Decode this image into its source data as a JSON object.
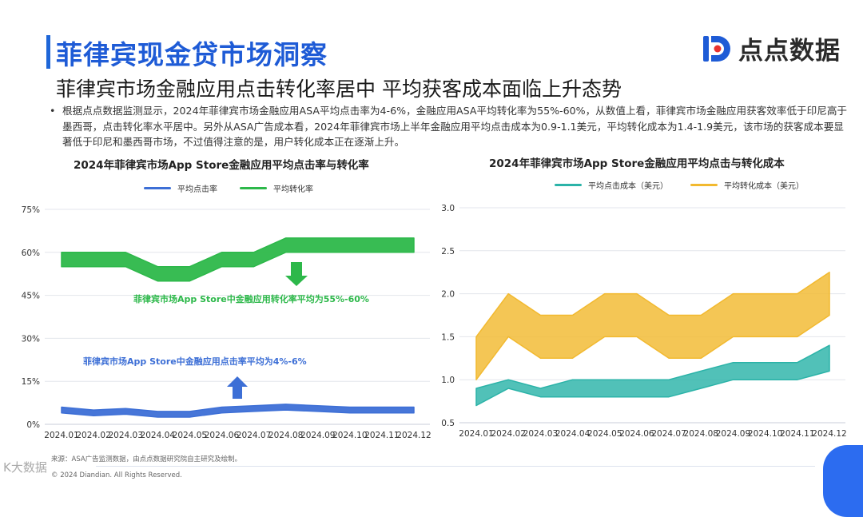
{
  "header": {
    "title": "菲律宾现金贷市场洞察",
    "subtitle": "菲律宾市场金融应用点击转化率居中 平均获客成本面临上升态势",
    "logo_text": "点点数据"
  },
  "summary": {
    "bullet": "•",
    "text": "根据点点数据监测显示，2024年菲律宾市场金融应用ASA平均点击率为4-6%，金融应用ASA平均转化率为55%-60%，从数值上看，菲律宾市场金融应用获客效率低于印尼高于墨西哥，点击转化率水平居中。另外从ASA广告成本看，2024年菲律宾市场上半年金融应用平均点击成本为0.9-1.1美元，平均转化成本为1.4-1.9美元，该市场的获客成本要显著低于印尼和墨西哥市场，不过值得注意的是，用户转化成本正在逐渐上升。"
  },
  "colors": {
    "blue": "#3d6fd6",
    "green": "#2db84a",
    "teal": "#2bb3a8",
    "yellow": "#f2b92f"
  },
  "footer": {
    "source": "来源：ASA广告监测数据，由点点数据研究院自主研究及绘制。",
    "copyright": "© 2024 Diandian. All Rights Reserved.",
    "watermark": "K大数据"
  },
  "chart_data": [
    {
      "type": "area",
      "title": "2024年菲律宾市场App Store金融应用平均点击率与转化率",
      "categories": [
        "2024.01",
        "2024.02",
        "2024.03",
        "2024.04",
        "2024.05",
        "2024.06",
        "2024.07",
        "2024.08",
        "2024.09",
        "2024.10",
        "2024.11",
        "2024.12"
      ],
      "ylim": [
        0,
        75
      ],
      "yticks": [
        "0%",
        "15%",
        "30%",
        "45%",
        "60%",
        "75%"
      ],
      "ytick_values": [
        0,
        15,
        30,
        45,
        60,
        75
      ],
      "series": [
        {
          "name": "平均点击率",
          "color": "#3d6fd6",
          "low": [
            4.0,
            3.0,
            3.5,
            2.5,
            2.5,
            4.0,
            4.5,
            5.0,
            4.5,
            4.0,
            4.0,
            4.0
          ],
          "high": [
            6.0,
            5.0,
            5.5,
            4.5,
            4.5,
            6.0,
            6.5,
            7.0,
            6.5,
            6.0,
            6.0,
            6.0
          ]
        },
        {
          "name": "平均转化率",
          "color": "#2db84a",
          "low": [
            55,
            55,
            55,
            50,
            50,
            55,
            55,
            60,
            60,
            60,
            60,
            60
          ],
          "high": [
            60,
            60,
            60,
            55,
            55,
            60,
            60,
            65,
            65,
            65,
            65,
            65
          ]
        }
      ],
      "annotations": [
        {
          "text": "菲律宾市场App Store中金融应用转化率平均为55%-60%",
          "color": "#2db84a",
          "arrow": "down"
        },
        {
          "text": "菲律宾市场App Store中金融应用点击率平均为4%-6%",
          "color": "#3d6fd6",
          "arrow": "up"
        }
      ],
      "grid": true,
      "legend_position": "top-center"
    },
    {
      "type": "area",
      "title": "2024年菲律宾市场App Store金融应用平均点击与转化成本",
      "categories": [
        "2024.01",
        "2024.02",
        "2024.03",
        "2024.04",
        "2024.05",
        "2024.06",
        "2024.07",
        "2024.08",
        "2024.09",
        "2024.10",
        "2024.11",
        "2024.12"
      ],
      "ylim": [
        0.5,
        3.0
      ],
      "yticks": [
        "0.5",
        "1.0",
        "1.5",
        "2.0",
        "2.5",
        "3.0"
      ],
      "ytick_values": [
        0.5,
        1.0,
        1.5,
        2.0,
        2.5,
        3.0
      ],
      "series": [
        {
          "name": "平均点击成本（美元）",
          "color": "#2bb3a8",
          "low": [
            0.7,
            0.9,
            0.8,
            0.8,
            0.8,
            0.8,
            0.8,
            0.9,
            1.0,
            1.0,
            1.0,
            1.1
          ],
          "high": [
            0.9,
            1.0,
            0.9,
            1.0,
            1.0,
            1.0,
            1.0,
            1.1,
            1.2,
            1.2,
            1.2,
            1.4
          ]
        },
        {
          "name": "平均转化成本（美元）",
          "color": "#f2b92f",
          "low": [
            1.0,
            1.5,
            1.25,
            1.25,
            1.5,
            1.5,
            1.25,
            1.25,
            1.5,
            1.5,
            1.5,
            1.75
          ],
          "high": [
            1.5,
            2.0,
            1.75,
            1.75,
            2.0,
            2.0,
            1.75,
            1.75,
            2.0,
            2.0,
            2.0,
            2.25
          ]
        }
      ],
      "grid": true,
      "legend_position": "top-center"
    }
  ]
}
